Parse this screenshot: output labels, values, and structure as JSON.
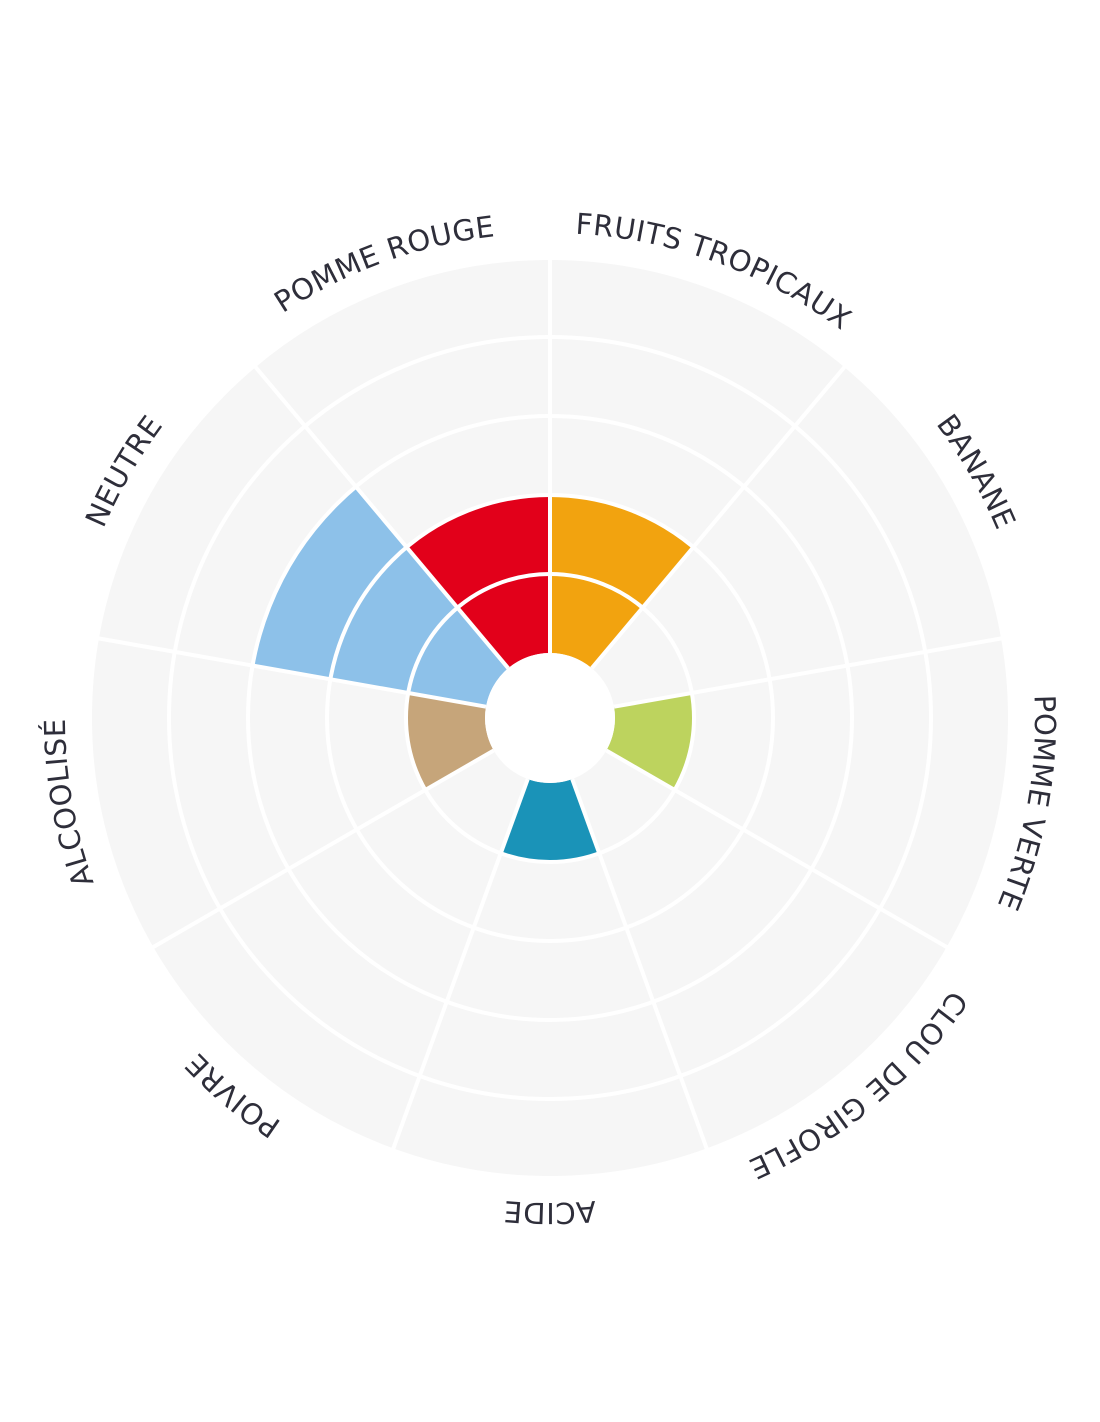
{
  "chart_data": {
    "type": "polar-area",
    "levels": 5,
    "categories": [
      "FRUITS TROPICAUX",
      "BANANE",
      "POMME VERTE",
      "CLOU DE GIROFLE",
      "ACIDE",
      "POIVRE",
      "ALCOOLISÉ",
      "NEUTRE",
      "POMME ROUGE"
    ],
    "values": [
      2,
      0,
      1,
      0,
      1,
      0,
      1,
      3,
      2
    ],
    "colors": [
      "#F2A30F",
      "#F2A30F",
      "#BDD35E",
      "#BDD35E",
      "#1A93B8",
      "#C6A57A",
      "#C6A57A",
      "#8DC1E9",
      "#E2001A"
    ],
    "grid": true,
    "background": "#F6F6F6"
  }
}
